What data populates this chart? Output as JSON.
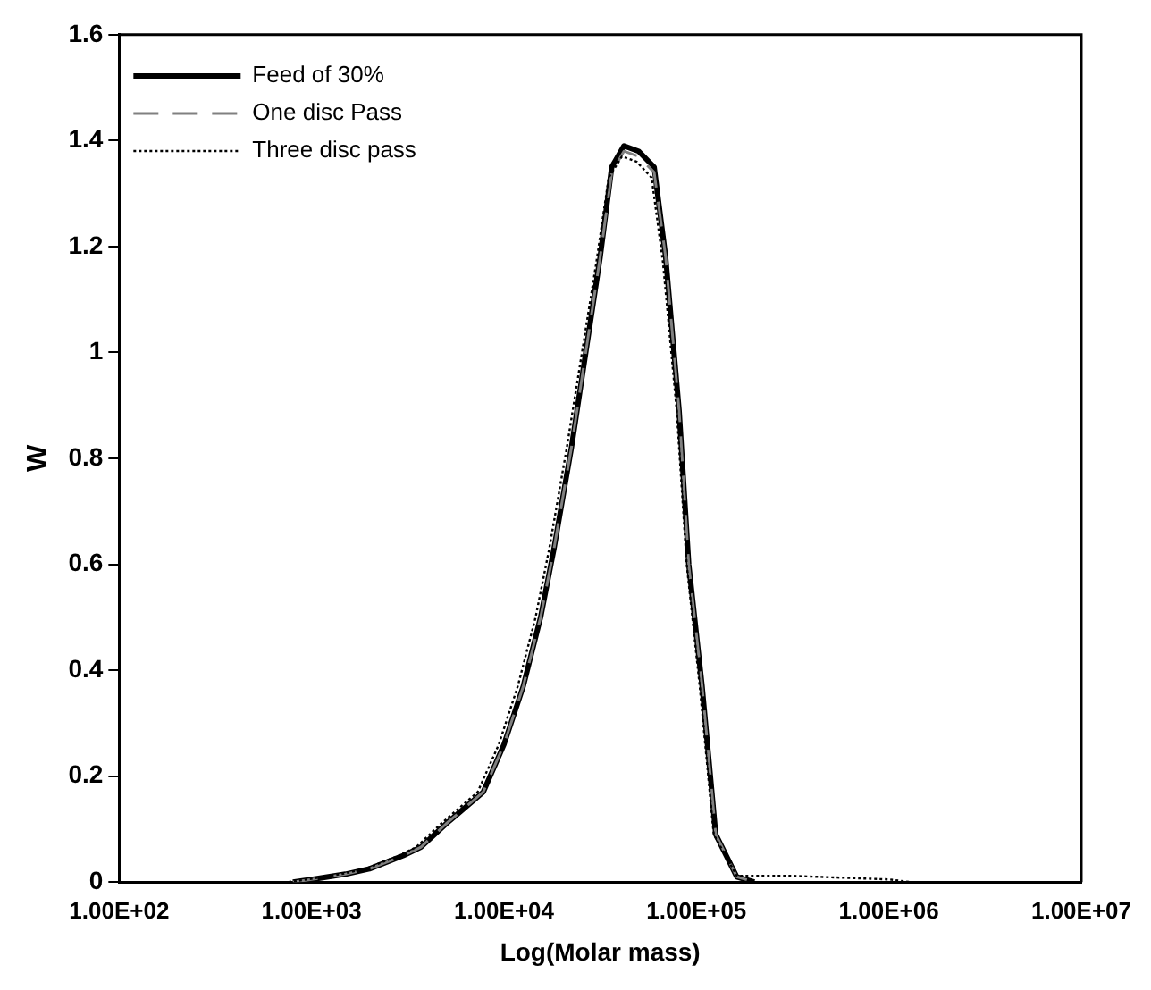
{
  "chart_data": {
    "type": "line",
    "xlabel": "Log(Molar mass)",
    "ylabel": "W",
    "log": "x",
    "xlim": [
      100,
      10000000
    ],
    "xticks": [
      {
        "value": 100,
        "label": "1.00E+02"
      },
      {
        "value": 1000,
        "label": "1.00E+03"
      },
      {
        "value": 10000,
        "label": "1.00E+04"
      },
      {
        "value": 100000,
        "label": "1.00E+05"
      },
      {
        "value": 1000000,
        "label": "1.00E+06"
      },
      {
        "value": 10000000,
        "label": "1.00E+07"
      }
    ],
    "ylim": [
      0,
      1.6
    ],
    "yticks": [
      0,
      0.2,
      0.4,
      0.6,
      0.8,
      1,
      1.2,
      1.4,
      1.6
    ],
    "grid": false,
    "legend": "top left",
    "marker": "none",
    "series": [
      {
        "name": "Feed of 30%",
        "color": "#000000",
        "line_style": "solid",
        "x": [
          800,
          1000,
          1500,
          2000,
          3000,
          3700,
          5000,
          7800,
          10000,
          12600,
          15500,
          18200,
          22400,
          31600,
          36300,
          42000,
          50000,
          60300,
          69200,
          81300,
          91200,
          107000,
          126000,
          162000,
          200000
        ],
        "values": [
          0,
          0.005,
          0.015,
          0.025,
          0.05,
          0.066,
          0.11,
          0.17,
          0.26,
          0.37,
          0.5,
          0.63,
          0.82,
          1.18,
          1.35,
          1.39,
          1.38,
          1.35,
          1.18,
          0.89,
          0.6,
          0.37,
          0.09,
          0.01,
          0
        ]
      },
      {
        "name": "One disc Pass",
        "color": "#808080",
        "line_style": "dashed",
        "x": [
          800,
          1000,
          1500,
          2000,
          3000,
          3700,
          5000,
          7800,
          10000,
          12600,
          15500,
          18200,
          22400,
          31600,
          36300,
          42000,
          50000,
          60300,
          69200,
          81300,
          91200,
          107000,
          126000,
          162000,
          200000
        ],
        "values": [
          0,
          0.005,
          0.015,
          0.025,
          0.05,
          0.066,
          0.11,
          0.17,
          0.26,
          0.37,
          0.5,
          0.63,
          0.82,
          1.18,
          1.34,
          1.38,
          1.37,
          1.34,
          1.18,
          0.89,
          0.6,
          0.37,
          0.09,
          0.01,
          0
        ]
      },
      {
        "name": "Three disc pass",
        "color": "#000000",
        "line_style": "dotted",
        "x": [
          760,
          950,
          1420,
          1900,
          2850,
          3500,
          4700,
          7300,
          9400,
          11800,
          14600,
          17200,
          21200,
          30200,
          35000,
          41000,
          49000,
          58500,
          67000,
          79000,
          89000,
          104000,
          123000,
          162000,
          300000,
          600000,
          1000000,
          1300000
        ],
        "values": [
          0,
          0.005,
          0.015,
          0.025,
          0.05,
          0.066,
          0.11,
          0.17,
          0.26,
          0.37,
          0.5,
          0.63,
          0.82,
          1.17,
          1.33,
          1.37,
          1.36,
          1.33,
          1.17,
          0.89,
          0.6,
          0.37,
          0.09,
          0.012,
          0.012,
          0.008,
          0.005,
          0
        ]
      }
    ]
  }
}
